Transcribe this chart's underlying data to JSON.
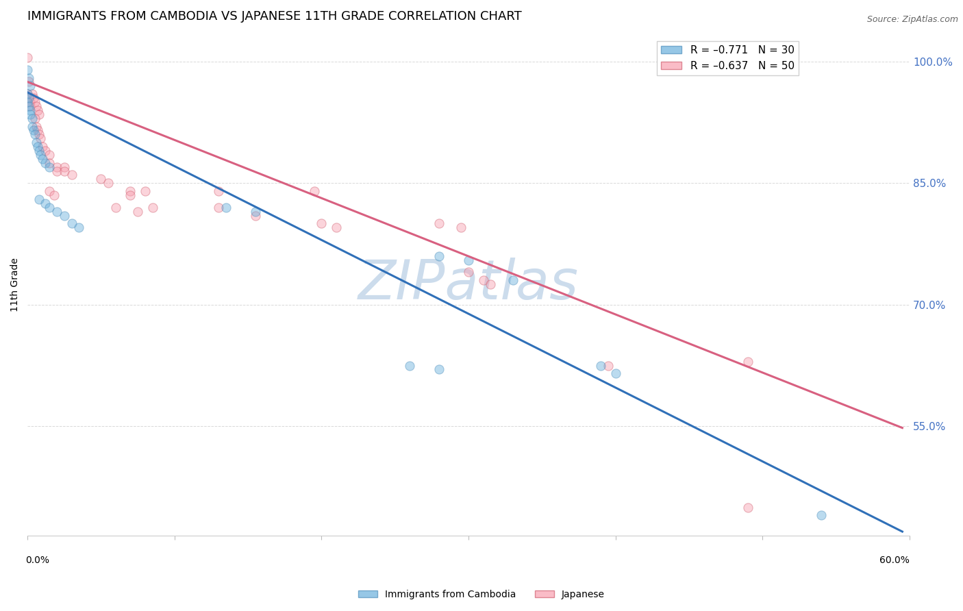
{
  "title": "IMMIGRANTS FROM CAMBODIA VS JAPANESE 11TH GRADE CORRELATION CHART",
  "source": "Source: ZipAtlas.com",
  "ylabel": "11th Grade",
  "ylabel_right_ticks": [
    "100.0%",
    "85.0%",
    "70.0%",
    "55.0%"
  ],
  "ylabel_right_vals": [
    1.0,
    0.85,
    0.7,
    0.55
  ],
  "watermark": "ZIPatlas",
  "blue_scatter": [
    [
      0.0,
      0.99
    ],
    [
      0.001,
      0.98
    ],
    [
      0.002,
      0.97
    ],
    [
      0.0,
      0.96
    ],
    [
      0.001,
      0.955
    ],
    [
      0.0,
      0.95
    ],
    [
      0.001,
      0.945
    ],
    [
      0.002,
      0.94
    ],
    [
      0.002,
      0.935
    ],
    [
      0.003,
      0.93
    ],
    [
      0.003,
      0.92
    ],
    [
      0.004,
      0.915
    ],
    [
      0.005,
      0.91
    ],
    [
      0.006,
      0.9
    ],
    [
      0.007,
      0.895
    ],
    [
      0.008,
      0.89
    ],
    [
      0.009,
      0.885
    ],
    [
      0.01,
      0.88
    ],
    [
      0.012,
      0.875
    ],
    [
      0.015,
      0.87
    ],
    [
      0.008,
      0.83
    ],
    [
      0.012,
      0.825
    ],
    [
      0.015,
      0.82
    ],
    [
      0.02,
      0.815
    ],
    [
      0.025,
      0.81
    ],
    [
      0.03,
      0.8
    ],
    [
      0.035,
      0.795
    ],
    [
      0.135,
      0.82
    ],
    [
      0.155,
      0.815
    ],
    [
      0.28,
      0.76
    ],
    [
      0.3,
      0.755
    ],
    [
      0.33,
      0.73
    ],
    [
      0.26,
      0.625
    ],
    [
      0.28,
      0.62
    ],
    [
      0.39,
      0.625
    ],
    [
      0.4,
      0.615
    ],
    [
      0.54,
      0.44
    ]
  ],
  "pink_scatter": [
    [
      0.0,
      1.005
    ],
    [
      0.001,
      0.975
    ],
    [
      0.0,
      0.96
    ],
    [
      0.001,
      0.955
    ],
    [
      0.002,
      0.95
    ],
    [
      0.002,
      0.945
    ],
    [
      0.003,
      0.96
    ],
    [
      0.004,
      0.955
    ],
    [
      0.005,
      0.95
    ],
    [
      0.006,
      0.945
    ],
    [
      0.007,
      0.94
    ],
    [
      0.008,
      0.935
    ],
    [
      0.005,
      0.93
    ],
    [
      0.006,
      0.92
    ],
    [
      0.007,
      0.915
    ],
    [
      0.008,
      0.91
    ],
    [
      0.009,
      0.905
    ],
    [
      0.01,
      0.895
    ],
    [
      0.012,
      0.89
    ],
    [
      0.015,
      0.885
    ],
    [
      0.015,
      0.875
    ],
    [
      0.02,
      0.87
    ],
    [
      0.02,
      0.865
    ],
    [
      0.025,
      0.87
    ],
    [
      0.025,
      0.865
    ],
    [
      0.03,
      0.86
    ],
    [
      0.015,
      0.84
    ],
    [
      0.018,
      0.835
    ],
    [
      0.05,
      0.855
    ],
    [
      0.055,
      0.85
    ],
    [
      0.07,
      0.84
    ],
    [
      0.07,
      0.835
    ],
    [
      0.06,
      0.82
    ],
    [
      0.075,
      0.815
    ],
    [
      0.08,
      0.84
    ],
    [
      0.085,
      0.82
    ],
    [
      0.13,
      0.84
    ],
    [
      0.13,
      0.82
    ],
    [
      0.155,
      0.81
    ],
    [
      0.195,
      0.84
    ],
    [
      0.2,
      0.8
    ],
    [
      0.21,
      0.795
    ],
    [
      0.28,
      0.8
    ],
    [
      0.295,
      0.795
    ],
    [
      0.3,
      0.74
    ],
    [
      0.31,
      0.73
    ],
    [
      0.315,
      0.725
    ],
    [
      0.395,
      0.625
    ],
    [
      0.49,
      0.63
    ],
    [
      0.49,
      0.45
    ]
  ],
  "blue_line_x": [
    0.0,
    0.595
  ],
  "blue_line_y": [
    0.962,
    0.42
  ],
  "pink_line_x": [
    0.0,
    0.595
  ],
  "pink_line_y": [
    0.975,
    0.548
  ],
  "xlim": [
    0.0,
    0.6
  ],
  "ylim": [
    0.415,
    1.035
  ],
  "background_color": "#ffffff",
  "scatter_alpha": 0.45,
  "scatter_size": 90,
  "title_fontsize": 13,
  "axis_label_fontsize": 10,
  "watermark_color": "#ccdcec",
  "watermark_fontsize": 58,
  "grid_color": "#d8d8d8",
  "blue_color": "#6ab0dc",
  "blue_edge": "#5090bc",
  "pink_color": "#f8a0b0",
  "pink_edge": "#d06070",
  "blue_line_color": "#3070b8",
  "pink_line_color": "#d86080"
}
